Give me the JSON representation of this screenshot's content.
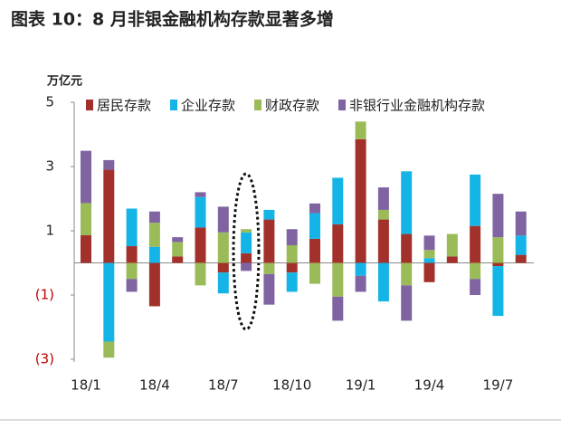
{
  "chart_data": {
    "type": "bar",
    "stacked": true,
    "title": "图表 10：8 月非银金融机构存款显著多增",
    "y_label": "万亿元",
    "categories": [
      "18/1",
      null,
      null,
      "18/4",
      null,
      null,
      "18/7",
      null,
      null,
      "18/10",
      null,
      null,
      "19/1",
      null,
      null,
      "19/4",
      null,
      null,
      "19/7",
      null
    ],
    "series": [
      {
        "name": "居民存款",
        "color": "#a3312b",
        "values": [
          0.86,
          2.9,
          0.52,
          -1.35,
          0.2,
          1.1,
          -0.3,
          0.3,
          1.35,
          -0.3,
          0.75,
          1.2,
          3.85,
          1.35,
          0.9,
          -0.6,
          0.2,
          1.15,
          -0.1,
          0.25
        ]
      },
      {
        "name": "企业存款",
        "color": "#15b4e6",
        "values": [
          0,
          -2.45,
          1.17,
          0.5,
          0,
          0.95,
          -0.65,
          0.65,
          0.3,
          -0.6,
          0.8,
          1.45,
          -0.4,
          -1.2,
          1.95,
          0.15,
          0,
          1.6,
          -1.55,
          0.6
        ]
      },
      {
        "name": "财政存款",
        "color": "#9bbb59",
        "values": [
          1.0,
          -0.5,
          -0.5,
          0.75,
          0.45,
          -0.7,
          0.95,
          0.1,
          -0.35,
          0.55,
          -0.65,
          -1.05,
          0.55,
          0.3,
          -0.7,
          0.25,
          0.7,
          -0.5,
          0.8,
          0
        ]
      },
      {
        "name": "非银行业金融机构存款",
        "color": "#8064a2",
        "values": [
          1.63,
          0.3,
          -0.4,
          0.35,
          0.15,
          0.15,
          0.8,
          -0.25,
          -0.95,
          0.5,
          0.3,
          -0.75,
          -0.5,
          0.7,
          -1.1,
          0.45,
          0,
          -0.5,
          1.35,
          0.75
        ]
      }
    ],
    "ylim": [
      -3,
      5
    ],
    "yticks": [
      5,
      3,
      1,
      {
        "value": -1,
        "label": "(1)"
      },
      {
        "value": -3,
        "label": "(3)"
      }
    ],
    "legend": "top"
  }
}
